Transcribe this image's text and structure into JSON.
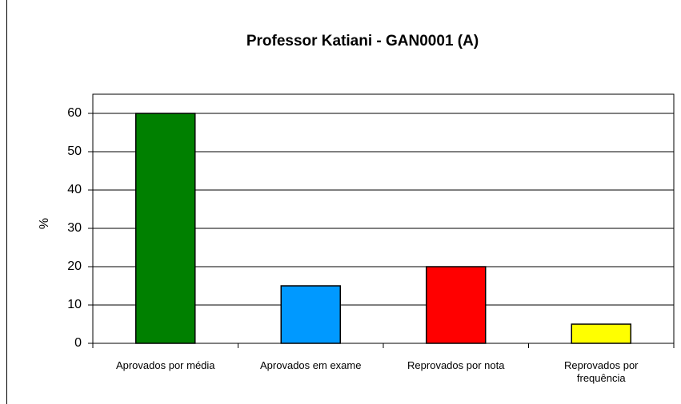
{
  "chart_data": {
    "type": "bar",
    "title": "Professor Katiani - GAN0001 (A)",
    "y_label": "%",
    "categories": [
      "Aprovados por média",
      "Aprovados em exame",
      "Reprovados por nota",
      "Reprovados por frequência"
    ],
    "values": [
      60,
      15,
      20,
      5
    ],
    "colors": [
      "#008000",
      "#0099ff",
      "#ff0000",
      "#ffff00"
    ],
    "ylim": [
      0,
      65
    ],
    "yticks": [
      0,
      10,
      20,
      30,
      40,
      50,
      60
    ],
    "grid": true
  }
}
